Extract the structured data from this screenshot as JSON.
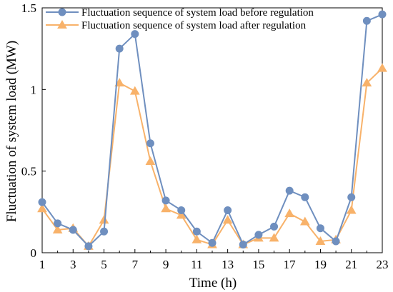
{
  "chart_data": {
    "type": "line",
    "xlabel": "Time (h)",
    "ylabel": "Fluctuation of system load (MW)",
    "xlim": [
      1,
      23
    ],
    "ylim": [
      0,
      1.5
    ],
    "x_ticks": [
      1,
      3,
      5,
      7,
      9,
      11,
      13,
      15,
      17,
      19,
      21,
      23
    ],
    "y_ticks": [
      0,
      0.5,
      1,
      1.5
    ],
    "y_tick_labels": [
      "0",
      "0.5",
      "1",
      "1.5"
    ],
    "legend_position": "top-left",
    "grid": false,
    "x": [
      1,
      2,
      3,
      4,
      5,
      6,
      7,
      8,
      9,
      10,
      11,
      12,
      13,
      14,
      15,
      16,
      17,
      18,
      19,
      20,
      21,
      22,
      23
    ],
    "series": [
      {
        "name": "Fluctuation sequence of system load before regulation",
        "color": "#6f8fbf",
        "marker": "circle",
        "values": [
          0.31,
          0.18,
          0.14,
          0.04,
          0.13,
          1.25,
          1.34,
          0.67,
          0.32,
          0.26,
          0.13,
          0.06,
          0.26,
          0.05,
          0.11,
          0.16,
          0.38,
          0.34,
          0.15,
          0.07,
          0.34,
          1.42,
          1.46
        ]
      },
      {
        "name": "Fluctuation sequence of system load after regulation",
        "color": "#f8b26a",
        "marker": "triangle",
        "values": [
          0.27,
          0.14,
          0.15,
          0.04,
          0.2,
          1.04,
          0.99,
          0.56,
          0.27,
          0.23,
          0.08,
          0.05,
          0.2,
          0.05,
          0.09,
          0.09,
          0.24,
          0.19,
          0.07,
          0.08,
          0.26,
          1.04,
          1.13
        ]
      }
    ]
  }
}
